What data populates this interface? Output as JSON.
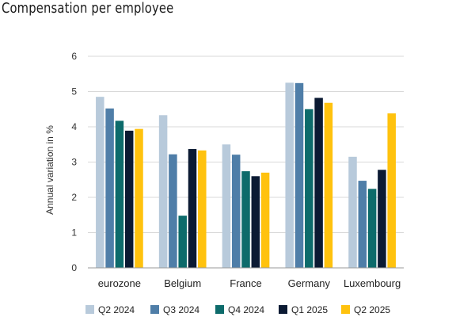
{
  "chart_data": {
    "type": "bar",
    "title": "Compensation per employee",
    "ylabel": "Annual variation in %",
    "xlabel": "",
    "ylim": [
      0,
      6
    ],
    "yticks": [
      0,
      1,
      2,
      3,
      4,
      5,
      6
    ],
    "grid": true,
    "legend_position": "bottom",
    "categories": [
      "eurozone",
      "Belgium",
      "France",
      "Germany",
      "Luxembourg"
    ],
    "series": [
      {
        "name": "Q2 2024",
        "color": "#b8cadb",
        "values": [
          4.85,
          4.33,
          3.5,
          5.25,
          3.15
        ]
      },
      {
        "name": "Q3 2024",
        "color": "#4f7ea8",
        "values": [
          4.52,
          3.22,
          3.21,
          5.24,
          2.47
        ]
      },
      {
        "name": "Q4 2024",
        "color": "#0d6b6b",
        "values": [
          4.17,
          1.48,
          2.74,
          4.5,
          2.24
        ]
      },
      {
        "name": "Q1 2025",
        "color": "#0b1a33",
        "values": [
          3.89,
          3.37,
          2.6,
          4.82,
          2.78
        ]
      },
      {
        "name": "Q2 2025",
        "color": "#ffc20e",
        "values": [
          3.94,
          3.33,
          2.7,
          4.68,
          4.38
        ]
      }
    ]
  }
}
